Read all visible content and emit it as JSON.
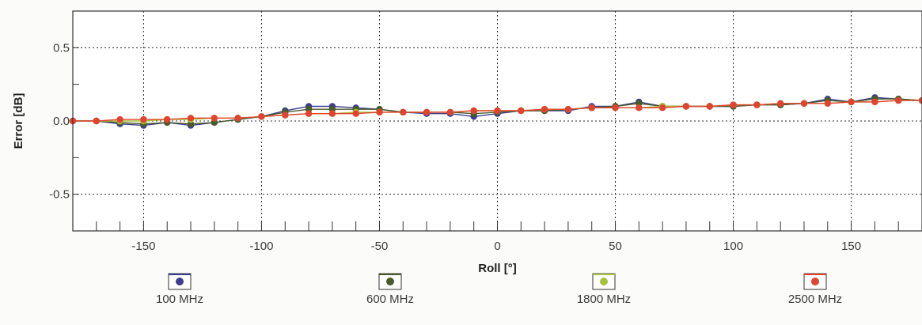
{
  "chart_data": {
    "type": "line",
    "title": "",
    "xlabel": "Roll [°]",
    "ylabel": "Error [dB]",
    "xlim": [
      -180,
      180
    ],
    "ylim": [
      -0.75,
      0.75
    ],
    "x_ticks": [
      -150,
      -100,
      -50,
      0,
      50,
      100,
      150
    ],
    "x_tick_labels": [
      "-150",
      "-100",
      "-50",
      "0",
      "50",
      "100",
      "150"
    ],
    "y_ticks": [
      0.5,
      0.0,
      -0.5
    ],
    "y_tick_labels": [
      "0.5",
      "0.0",
      "-0.5"
    ],
    "grid": true,
    "legend_position": "bottom",
    "x": [
      -180,
      -170,
      -160,
      -150,
      -140,
      -130,
      -120,
      -110,
      -100,
      -90,
      -80,
      -70,
      -60,
      -50,
      -40,
      -30,
      -20,
      -10,
      0,
      10,
      20,
      30,
      40,
      50,
      60,
      70,
      80,
      90,
      100,
      110,
      120,
      130,
      140,
      150,
      160,
      170,
      180
    ],
    "series": [
      {
        "name": "100 MHz",
        "color": "#3c3f8f",
        "values": [
          0.0,
          0.0,
          -0.02,
          -0.03,
          -0.01,
          -0.03,
          -0.01,
          0.01,
          0.03,
          0.07,
          0.1,
          0.1,
          0.09,
          0.08,
          0.06,
          0.05,
          0.05,
          0.03,
          0.05,
          0.07,
          0.07,
          0.07,
          0.1,
          0.1,
          0.13,
          0.1,
          0.1,
          0.1,
          0.1,
          0.11,
          0.11,
          0.12,
          0.15,
          0.13,
          0.16,
          0.15,
          0.14
        ]
      },
      {
        "name": "600 MHz",
        "color": "#4a5a2a",
        "values": [
          0.0,
          0.0,
          -0.01,
          -0.02,
          -0.01,
          -0.02,
          -0.01,
          0.01,
          0.03,
          0.06,
          0.08,
          0.08,
          0.08,
          0.08,
          0.06,
          0.06,
          0.06,
          0.05,
          0.06,
          0.07,
          0.07,
          0.08,
          0.09,
          0.1,
          0.12,
          0.1,
          0.1,
          0.1,
          0.1,
          0.11,
          0.11,
          0.12,
          0.14,
          0.13,
          0.15,
          0.15,
          0.14
        ]
      },
      {
        "name": "1800 MHz",
        "color": "#a6c13a",
        "values": [
          0.0,
          0.0,
          0.0,
          0.0,
          0.01,
          0.01,
          0.02,
          0.02,
          0.03,
          0.04,
          0.05,
          0.05,
          0.06,
          0.06,
          0.06,
          0.06,
          0.06,
          0.07,
          0.07,
          0.07,
          0.08,
          0.08,
          0.09,
          0.09,
          0.09,
          0.1,
          0.1,
          0.1,
          0.11,
          0.11,
          0.12,
          0.12,
          0.12,
          0.13,
          0.13,
          0.14,
          0.14
        ]
      },
      {
        "name": "2500 MHz",
        "color": "#e0432e",
        "values": [
          0.0,
          0.0,
          0.01,
          0.01,
          0.01,
          0.02,
          0.02,
          0.02,
          0.03,
          0.04,
          0.05,
          0.05,
          0.05,
          0.06,
          0.06,
          0.06,
          0.06,
          0.07,
          0.07,
          0.07,
          0.08,
          0.08,
          0.09,
          0.09,
          0.09,
          0.09,
          0.1,
          0.1,
          0.11,
          0.11,
          0.12,
          0.12,
          0.12,
          0.13,
          0.13,
          0.14,
          0.14
        ]
      }
    ]
  }
}
